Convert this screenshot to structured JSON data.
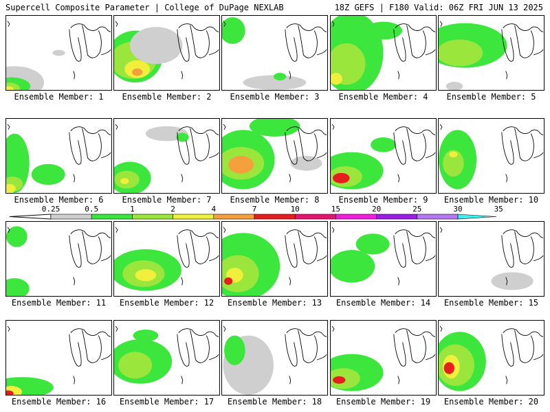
{
  "header": {
    "left": "Supercell Composite Parameter | College of DuPage NEXLAB",
    "right": "18Z GEFS | F180 Valid: 06Z FRI JUN 13 2025"
  },
  "panels": [
    {
      "label": "Ensemble Member: 1"
    },
    {
      "label": "Ensemble Member: 2"
    },
    {
      "label": "Ensemble Member: 3"
    },
    {
      "label": "Ensemble Member: 4"
    },
    {
      "label": "Ensemble Member: 5"
    },
    {
      "label": "Ensemble Member: 6"
    },
    {
      "label": "Ensemble Member: 7"
    },
    {
      "label": "Ensemble Member: 8"
    },
    {
      "label": "Ensemble Member: 9"
    },
    {
      "label": "Ensemble Member: 10"
    },
    {
      "label": "Ensemble Member: 11"
    },
    {
      "label": "Ensemble Member: 12"
    },
    {
      "label": "Ensemble Member: 13"
    },
    {
      "label": "Ensemble Member: 14"
    },
    {
      "label": "Ensemble Member: 15"
    },
    {
      "label": "Ensemble Member: 16"
    },
    {
      "label": "Ensemble Member: 17"
    },
    {
      "label": "Ensemble Member: 18"
    },
    {
      "label": "Ensemble Member: 19"
    },
    {
      "label": "Ensemble Member: 20"
    }
  ],
  "colorbar": {
    "labels": [
      "0.25",
      "0.5",
      "1",
      "2",
      "4",
      "7",
      "10",
      "15",
      "20",
      "25",
      "30",
      "35"
    ],
    "colors": [
      "#cfcfcf",
      "#3ce63c",
      "#9be63c",
      "#f0f03c",
      "#f5a03c",
      "#e61e1e",
      "#e6146e",
      "#f01edc",
      "#9b1ee6",
      "#b478f0",
      "#3cf0f0"
    ]
  }
}
